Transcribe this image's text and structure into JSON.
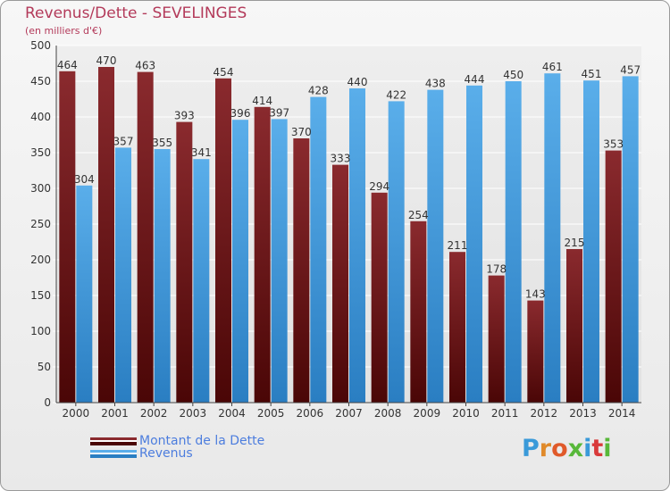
{
  "chart_data": {
    "type": "bar",
    "title": "Revenus/Dette - SEVELINGES",
    "subtitle": "(en milliers d'€)",
    "categories": [
      "2000",
      "2001",
      "2002",
      "2003",
      "2004",
      "2005",
      "2006",
      "2007",
      "2008",
      "2009",
      "2010",
      "2011",
      "2012",
      "2013",
      "2014"
    ],
    "series": [
      {
        "name": "Montant de la Dette",
        "color": "#7a1f1f",
        "values": [
          464,
          470,
          463,
          393,
          454,
          414,
          370,
          333,
          294,
          254,
          211,
          178,
          143,
          215,
          353
        ]
      },
      {
        "name": "Revenus",
        "color": "#3d97e0",
        "values": [
          304,
          357,
          355,
          341,
          396,
          397,
          428,
          440,
          422,
          438,
          444,
          450,
          461,
          451,
          457
        ]
      }
    ],
    "ylim": [
      0,
      500
    ],
    "yticks": [
      0,
      50,
      100,
      150,
      200,
      250,
      300,
      350,
      400,
      450,
      500
    ],
    "grid": true,
    "legend_position": "bottom-left"
  },
  "logo": {
    "text": "Proxiti",
    "letter_colors": [
      "#3a9ad9",
      "#e08a2a",
      "#e05a2a",
      "#58b83a",
      "#3a9ad9",
      "#d93a3a",
      "#58b83a"
    ]
  }
}
